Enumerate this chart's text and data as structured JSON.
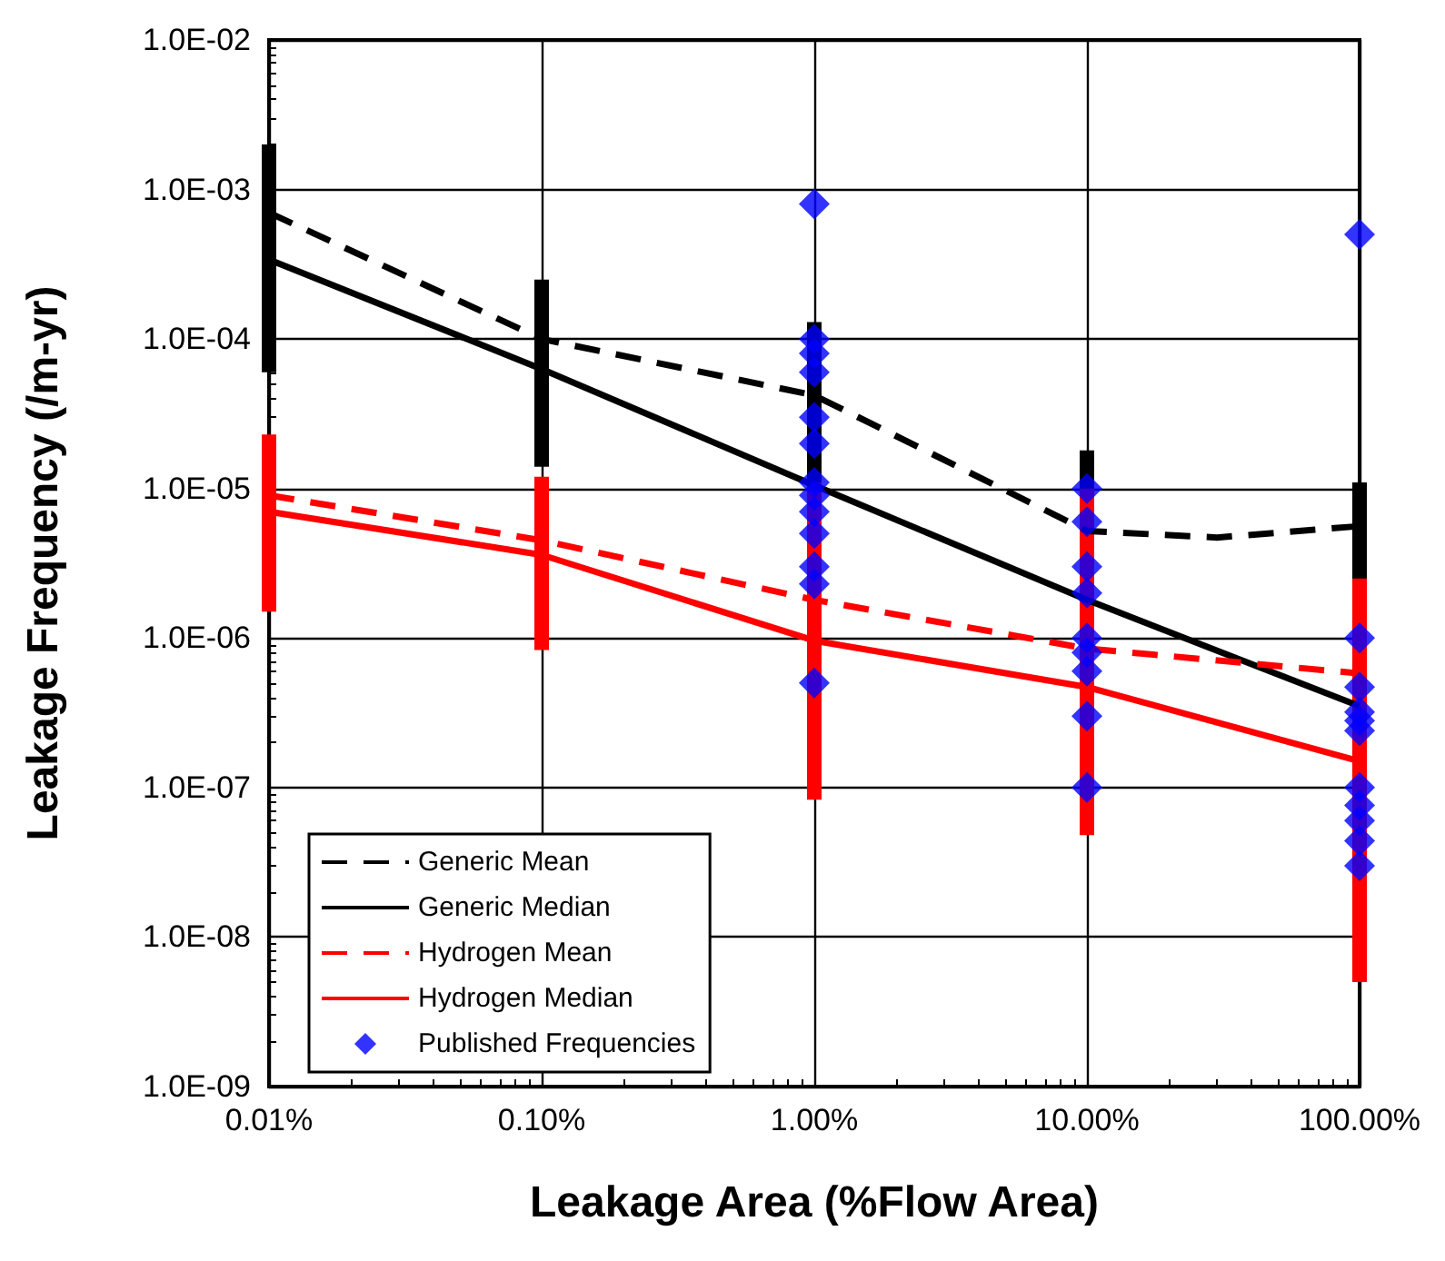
{
  "chart_data": {
    "type": "line",
    "xlabel": "Leakage Area (%Flow Area)",
    "ylabel": "Leakage Frequency (/m-yr)",
    "log": "xy",
    "grid": true,
    "legend": "bottom left",
    "marker": "none",
    "xlim": [
      0.01,
      100
    ],
    "xticks": [
      {
        "value": 0.01,
        "label": "0.01%"
      },
      {
        "value": 0.1,
        "label": "0.10%"
      },
      {
        "value": 1,
        "label": "1.00%"
      },
      {
        "value": 10,
        "label": "10.00%"
      },
      {
        "value": 100,
        "label": "100.00%"
      }
    ],
    "ylim": [
      1e-09,
      0.01
    ],
    "yticks": [
      {
        "value": 1e-09,
        "label": "1.0E-09"
      },
      {
        "value": 1e-08,
        "label": "1.0E-08"
      },
      {
        "value": 1e-07,
        "label": "1.0E-07"
      },
      {
        "value": 1e-06,
        "label": "1.0E-06"
      },
      {
        "value": 1e-05,
        "label": "1.0E-05"
      },
      {
        "value": 0.0001,
        "label": "1.0E-04"
      },
      {
        "value": 0.001,
        "label": "1.0E-03"
      },
      {
        "value": 0.01,
        "label": "1.0E-02"
      }
    ],
    "series": [
      {
        "name": "Generic Mean",
        "color": "#000000",
        "line_style": "dashed",
        "x": [
          0.01,
          0.1,
          1,
          10,
          30,
          100
        ],
        "values": [
          0.0007,
          0.0001,
          4.2e-05,
          5.2e-06,
          4.7e-06,
          5.6e-06
        ]
      },
      {
        "name": "Generic Median",
        "color": "#000000",
        "line_style": "solid",
        "x": [
          0.01,
          0.1,
          1,
          10,
          100
        ],
        "values": [
          0.00034,
          6.3e-05,
          1.05e-05,
          1.8e-06,
          3.5e-07
        ],
        "errors": [
          [
            6e-05,
            0.002
          ],
          [
            1.4e-05,
            0.00025
          ],
          [
            1.05e-05,
            0.00013
          ],
          [
            1.8e-06,
            1.8e-05
          ],
          [
            3.5e-07,
            1.1e-05
          ]
        ]
      },
      {
        "name": "Hydrogen Mean",
        "color": "#ff0000",
        "line_style": "dashed",
        "x": [
          0.01,
          0.1,
          1,
          10,
          100
        ],
        "values": [
          9e-06,
          4.5e-06,
          1.8e-06,
          8.5e-07,
          5.8e-07
        ]
      },
      {
        "name": "Hydrogen Median",
        "color": "#ff0000",
        "line_style": "solid",
        "x": [
          0.01,
          0.1,
          1,
          10,
          100
        ],
        "values": [
          7e-06,
          3.6e-06,
          9.6e-07,
          4.7e-07,
          1.5e-07
        ],
        "errors": [
          [
            1.5e-06,
            2.3e-05
          ],
          [
            8.3e-07,
            1.2e-05
          ],
          [
            8.3e-08,
            1.1e-05
          ],
          [
            4.8e-08,
            1e-05
          ],
          [
            5e-09,
            2.5e-06
          ]
        ]
      },
      {
        "name": "Published Frequencies",
        "type": "scatter",
        "marker": "diamond",
        "color": "#0000ff",
        "x": [
          1,
          1,
          1,
          1,
          1,
          1,
          1,
          1,
          1,
          1,
          1,
          1,
          1,
          10,
          10,
          10,
          10,
          10,
          10,
          10,
          10,
          10,
          100,
          100,
          100,
          100,
          100,
          100,
          100,
          100,
          100,
          100,
          100
        ],
        "values": [
          0.0008,
          0.0001,
          8e-05,
          6e-05,
          3e-05,
          2e-05,
          1.1e-05,
          9e-06,
          7e-06,
          5e-06,
          3e-06,
          2.3e-06,
          5e-07,
          1e-05,
          6e-06,
          3e-06,
          2e-06,
          1e-06,
          8e-07,
          6e-07,
          3e-07,
          1e-07,
          0.0005,
          1e-06,
          4.7e-07,
          3.2e-07,
          2.8e-07,
          2.4e-07,
          1e-07,
          7.6e-08,
          6e-08,
          4.4e-08,
          3e-08
        ]
      }
    ]
  }
}
